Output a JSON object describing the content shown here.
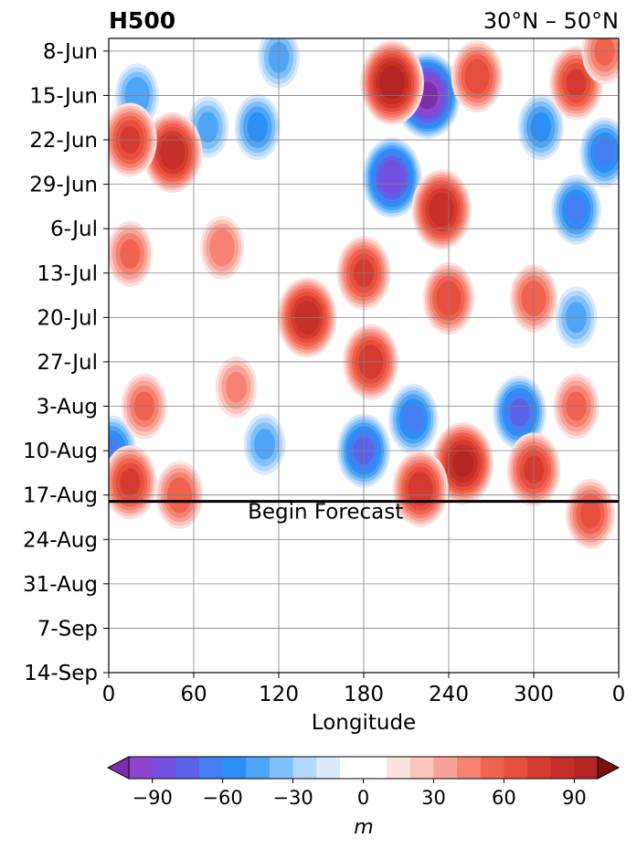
{
  "chart_data": {
    "type": "heatmap",
    "title_left": "H500",
    "title_right": "30°N – 50°N",
    "xlabel": "Longitude",
    "ylabel": "",
    "x_ticks": [
      "0",
      "60",
      "120",
      "180",
      "240",
      "300",
      "0"
    ],
    "x_tick_values": [
      0,
      60,
      120,
      180,
      240,
      300,
      360
    ],
    "xlim": [
      0,
      360
    ],
    "y_ticks": [
      "8-Jun",
      "15-Jun",
      "22-Jun",
      "29-Jun",
      "6-Jul",
      "13-Jul",
      "20-Jul",
      "27-Jul",
      "3-Aug",
      "10-Aug",
      "17-Aug",
      "24-Aug",
      "31-Aug",
      "7-Sep",
      "14-Sep"
    ],
    "y_range": [
      "6-Jun",
      "14-Sep"
    ],
    "grid": true,
    "forecast_line": {
      "date": "18-Aug",
      "label": "Begin Forecast"
    },
    "colorbar": {
      "label": "m",
      "ticks": [
        -90,
        -60,
        -30,
        0,
        30,
        60,
        90
      ],
      "tick_labels": [
        "−90",
        "−60",
        "−30",
        "0",
        "30",
        "60",
        "90"
      ],
      "levels": [
        -100,
        -90,
        -80,
        -70,
        -60,
        -50,
        -40,
        -30,
        -20,
        -10,
        10,
        20,
        30,
        40,
        50,
        60,
        70,
        80,
        90,
        100
      ],
      "under_color": "#7a2fa8",
      "over_color": "#7a1010",
      "colors": [
        "#8e44cc",
        "#7450e0",
        "#5a63ea",
        "#437ef2",
        "#2b8ff5",
        "#4ea4f7",
        "#80bff9",
        "#b3d7fb",
        "#dbeafc",
        "#ffffff",
        "#fde2e0",
        "#fbc4bd",
        "#f8a397",
        "#f58273",
        "#f2634f",
        "#e64f3e",
        "#d63b30",
        "#c62f27",
        "#b52525"
      ]
    },
    "anomalies": [
      {
        "lon": 20,
        "date": "15-Jun",
        "value": -45
      },
      {
        "lon": 70,
        "date": "20-Jun",
        "value": -40
      },
      {
        "lon": 105,
        "date": "20-Jun",
        "value": -50
      },
      {
        "lon": 200,
        "date": "28-Jun",
        "value": -85
      },
      {
        "lon": 225,
        "date": "15-Jun",
        "value": -100
      },
      {
        "lon": 305,
        "date": "20-Jun",
        "value": -50
      },
      {
        "lon": 350,
        "date": "24-Jun",
        "value": -60
      },
      {
        "lon": 330,
        "date": "3-Jul",
        "value": -60
      },
      {
        "lon": 120,
        "date": "9-Jun",
        "value": -40
      },
      {
        "lon": 215,
        "date": "5-Aug",
        "value": -60
      },
      {
        "lon": 290,
        "date": "4-Aug",
        "value": -70
      },
      {
        "lon": 180,
        "date": "10-Aug",
        "value": -70
      },
      {
        "lon": 2,
        "date": "10-Aug",
        "value": -60
      },
      {
        "lon": 110,
        "date": "9-Aug",
        "value": -40
      },
      {
        "lon": 330,
        "date": "20-Jul",
        "value": -40
      },
      {
        "lon": 200,
        "date": "13-Jun",
        "value": 95
      },
      {
        "lon": 45,
        "date": "24-Jun",
        "value": 85
      },
      {
        "lon": 15,
        "date": "22-Jun",
        "value": 70
      },
      {
        "lon": 235,
        "date": "3-Jul",
        "value": 85
      },
      {
        "lon": 260,
        "date": "12-Jun",
        "value": 65
      },
      {
        "lon": 330,
        "date": "13-Jun",
        "value": 70
      },
      {
        "lon": 140,
        "date": "20-Jul",
        "value": 85
      },
      {
        "lon": 180,
        "date": "13-Jul",
        "value": 70
      },
      {
        "lon": 240,
        "date": "17-Jul",
        "value": 65
      },
      {
        "lon": 185,
        "date": "27-Jul",
        "value": 75
      },
      {
        "lon": 250,
        "date": "12-Aug",
        "value": 90
      },
      {
        "lon": 220,
        "date": "16-Aug",
        "value": 75
      },
      {
        "lon": 300,
        "date": "13-Aug",
        "value": 70
      },
      {
        "lon": 340,
        "date": "20-Aug",
        "value": 60
      },
      {
        "lon": 15,
        "date": "15-Aug",
        "value": 70
      },
      {
        "lon": 50,
        "date": "17-Aug",
        "value": 55
      },
      {
        "lon": 25,
        "date": "3-Aug",
        "value": 50
      },
      {
        "lon": 15,
        "date": "10-Jul",
        "value": 50
      },
      {
        "lon": 80,
        "date": "9-Jul",
        "value": 45
      },
      {
        "lon": 300,
        "date": "17-Jul",
        "value": 55
      },
      {
        "lon": 330,
        "date": "3-Aug",
        "value": 50
      },
      {
        "lon": 90,
        "date": "31-Jul",
        "value": 40
      },
      {
        "lon": 350,
        "date": "8-Jun",
        "value": 50
      }
    ]
  }
}
